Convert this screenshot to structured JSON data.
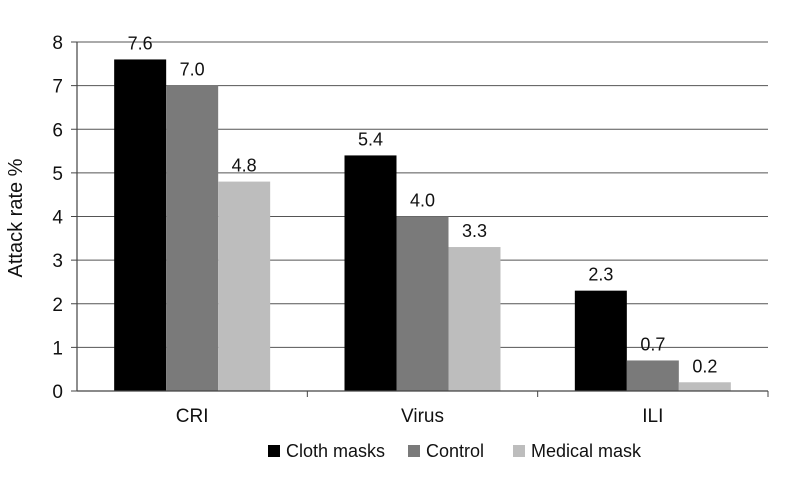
{
  "chart_data": {
    "type": "bar",
    "title": "",
    "xlabel": "",
    "ylabel": "Attack rate %",
    "categories": [
      "CRI",
      "Virus",
      "ILI"
    ],
    "series": [
      {
        "name": "Cloth masks",
        "values": [
          7.6,
          5.4,
          2.3
        ],
        "labels": [
          "7.6",
          "5.4",
          "2.3"
        ],
        "color": "#000000"
      },
      {
        "name": "Control",
        "values": [
          7.0,
          4.0,
          0.7
        ],
        "labels": [
          "7.0",
          "4.0",
          "0.7"
        ],
        "color": "#7a7a7a"
      },
      {
        "name": "Medical mask",
        "values": [
          4.8,
          3.3,
          0.2
        ],
        "labels": [
          "4.8",
          "3.3",
          "0.2"
        ],
        "color": "#bdbdbd"
      }
    ],
    "ylim": [
      0,
      8
    ],
    "yticks": [
      "0",
      "1",
      "2",
      "3",
      "4",
      "5",
      "6",
      "7",
      "8"
    ],
    "grid": true,
    "legend_position": "bottom"
  }
}
